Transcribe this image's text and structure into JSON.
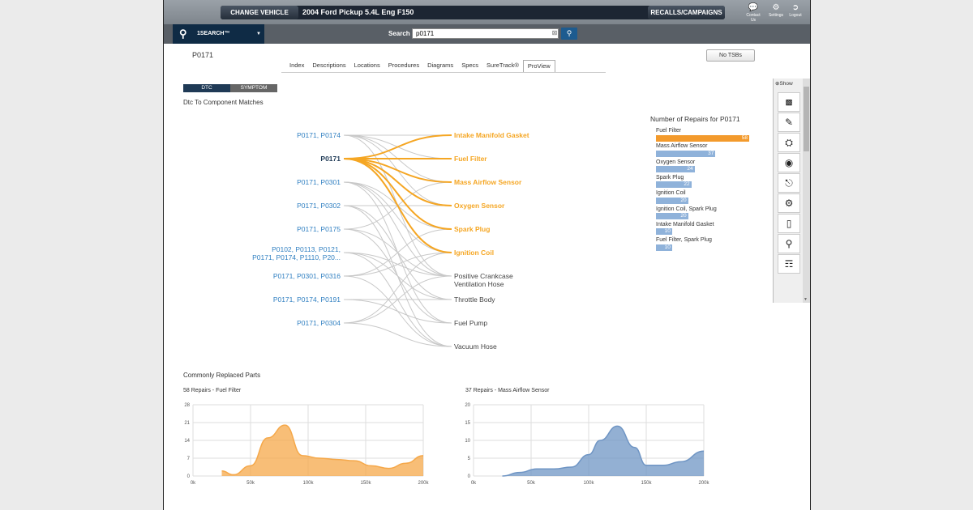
{
  "topbar": {
    "change_vehicle": "CHANGE VEHICLE",
    "vehicle": "2004 Ford Pickup 5.4L Eng F150",
    "recalls": "RECALLS/CAMPAIGNS",
    "icons": [
      {
        "name": "contact-icon",
        "label": "Contact Us"
      },
      {
        "name": "settings-icon",
        "label": "Settings"
      },
      {
        "name": "logout-icon",
        "label": "Logout"
      }
    ]
  },
  "search": {
    "onesearch_label": "1SEARCH™",
    "label": "Search",
    "value": "p0171"
  },
  "page": {
    "dtc": "P0171",
    "tsb_button": "No TSBs",
    "tabs": [
      "Index",
      "Descriptions",
      "Locations",
      "Procedures",
      "Diagrams",
      "Specs",
      "SureTrack®",
      "ProView"
    ],
    "active_tab": "ProView"
  },
  "toggle": {
    "dtc": "DTC",
    "symptom": "SYMPTOM"
  },
  "sankey": {
    "title": "Dtc To Component Matches",
    "sources": [
      [
        "P0171, P0174"
      ],
      [
        "P0171"
      ],
      [
        "P0171, P0301"
      ],
      [
        "P0171, P0302"
      ],
      [
        "P0171, P0175"
      ],
      [
        "P0102, P0113, P0121,",
        "P0171, P0174, P1110, P20..."
      ],
      [
        "P0171, P0301, P0316"
      ],
      [
        "P0171, P0174, P0191"
      ],
      [
        "P0171, P0304"
      ]
    ],
    "targets": [
      {
        "label": [
          "Intake Manifold Gasket"
        ],
        "highlight": true
      },
      {
        "label": [
          "Fuel Filter"
        ],
        "highlight": true
      },
      {
        "label": [
          "Mass Airflow Sensor"
        ],
        "highlight": true
      },
      {
        "label": [
          "Oxygen Sensor"
        ],
        "highlight": true
      },
      {
        "label": [
          "Spark Plug"
        ],
        "highlight": true
      },
      {
        "label": [
          "Ignition Coil"
        ],
        "highlight": true
      },
      {
        "label": [
          "Positive Crankcase",
          "Ventilation Hose"
        ],
        "highlight": false
      },
      {
        "label": [
          "Throttle Body"
        ],
        "highlight": false
      },
      {
        "label": [
          "Fuel Pump"
        ],
        "highlight": false
      },
      {
        "label": [
          "Vacuum Hose"
        ],
        "highlight": false
      }
    ],
    "colors": {
      "highlight": "#f5a623",
      "source": "#2f7fc1",
      "muted": "#c8c8c8"
    }
  },
  "repairs": {
    "title": "Number of Repairs for P0171",
    "items": [
      {
        "label": "Fuel Filter",
        "value": 58,
        "color": "#f39a2c"
      },
      {
        "label": "Mass Airflow Sensor",
        "value": 37,
        "color": "#8fb2da"
      },
      {
        "label": "Oxygen Sensor",
        "value": 24,
        "color": "#8fb2da"
      },
      {
        "label": "Spark Plug",
        "value": 22,
        "color": "#8fb2da"
      },
      {
        "label": "Ignition Coil",
        "value": 20,
        "color": "#8fb2da"
      },
      {
        "label": "Ignition Coil, Spark Plug",
        "value": 20,
        "color": "#8fb2da"
      },
      {
        "label": "Intake Manifold Gasket",
        "value": 10,
        "color": "#8fb2da"
      },
      {
        "label": "Fuel Filter, Spark Plug",
        "value": 10,
        "color": "#8fb2da"
      }
    ]
  },
  "sidebar": {
    "show": "Show",
    "tools": [
      "tsb-icon",
      "document-icon",
      "vehicle-icon",
      "component-icon",
      "tire-icon",
      "engine-icon",
      "battery-icon",
      "location-icon",
      "book-icon"
    ]
  },
  "common": {
    "title": "Commonly Replaced Parts"
  },
  "chart_data": [
    {
      "type": "area",
      "title": "58 Repairs - Fuel Filter",
      "color": "#f5a84a",
      "x": [
        25000,
        35000,
        50000,
        65000,
        80000,
        95000,
        110000,
        125000,
        140000,
        155000,
        170000,
        185000,
        200000
      ],
      "values": [
        2,
        0.5,
        4,
        15,
        20,
        8,
        7,
        6.5,
        6,
        4,
        3,
        5,
        8
      ],
      "xticks": [
        "0k",
        "50k",
        "100k",
        "150k",
        "200k"
      ],
      "yticks": [
        "0",
        "7",
        "14",
        "21",
        "28"
      ],
      "xlim": [
        0,
        200000
      ],
      "ylim": [
        0,
        28
      ]
    },
    {
      "type": "area",
      "title": "37 Repairs - Mass Airflow Sensor",
      "color": "#6f95c4",
      "x": [
        25000,
        40000,
        55000,
        70000,
        85000,
        100000,
        110000,
        125000,
        140000,
        150000,
        165000,
        180000,
        200000
      ],
      "values": [
        0,
        1,
        2,
        2,
        2.5,
        6,
        10,
        14,
        8,
        3,
        3,
        4,
        7
      ],
      "xticks": [
        "0k",
        "50k",
        "100k",
        "150k",
        "200k"
      ],
      "yticks": [
        "0",
        "5",
        "10",
        "15",
        "20"
      ],
      "xlim": [
        0,
        200000
      ],
      "ylim": [
        0,
        20
      ]
    }
  ]
}
